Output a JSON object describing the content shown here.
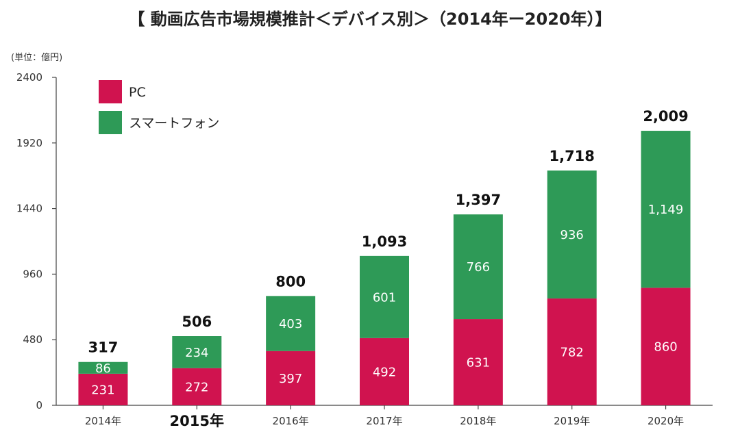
{
  "chart_data": {
    "type": "bar",
    "stacked": true,
    "title": "【 動画広告市場規模推計＜デバイス別＞（2014年ー2020年）】",
    "unit_label": "(単位：億円)",
    "categories": [
      "2014年",
      "2015年",
      "2016年",
      "2017年",
      "2018年",
      "2019年",
      "2020年"
    ],
    "highlighted_category": "2015年",
    "series": [
      {
        "name": "PC",
        "color": "#d0134f",
        "values": [
          231,
          272,
          397,
          492,
          631,
          782,
          860
        ]
      },
      {
        "name": "スマートフォン",
        "color": "#2e9a57",
        "values": [
          86,
          234,
          403,
          601,
          766,
          936,
          1149
        ]
      }
    ],
    "value_labels": {
      "PC": [
        "231",
        "272",
        "397",
        "492",
        "631",
        "782",
        "860"
      ],
      "スマートフォン": [
        "86",
        "234",
        "403",
        "601",
        "766",
        "936",
        "1,149"
      ]
    },
    "totals": [
      "317",
      "506",
      "800",
      "1,093",
      "1,397",
      "1,718",
      "2,009"
    ],
    "ylim": [
      0,
      2400
    ],
    "yticks": [
      0,
      480,
      960,
      1440,
      1920,
      2400
    ],
    "grid": false,
    "legend_position": "top-left"
  }
}
